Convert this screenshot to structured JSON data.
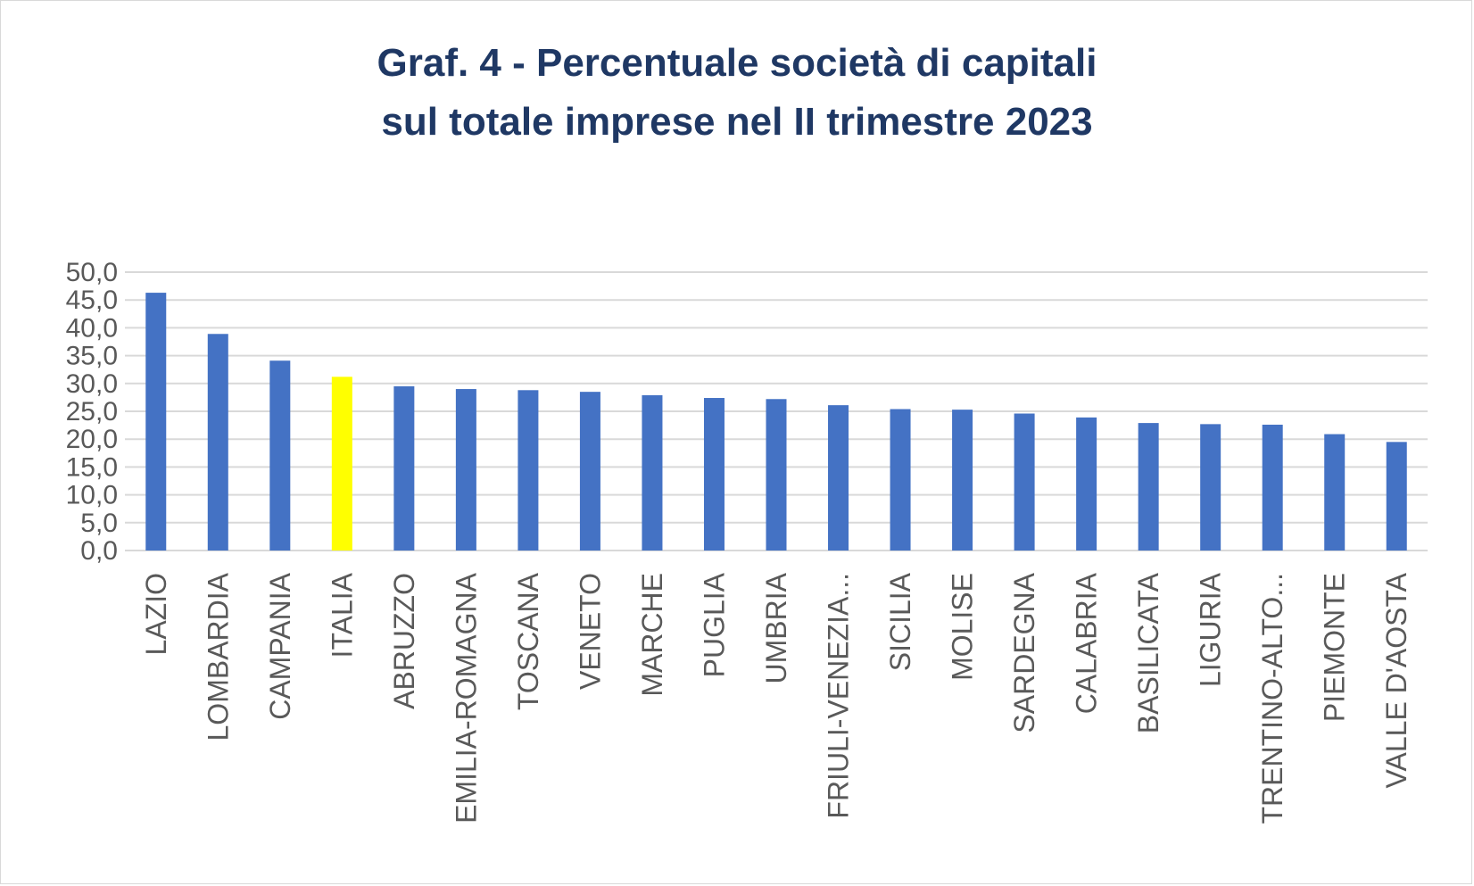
{
  "chart_data": {
    "type": "bar",
    "title_line1": "Graf. 4 - Percentuale società di capitali",
    "title_line2": "sul totale imprese nel II trimestre 2023",
    "categories": [
      "LAZIO",
      "LOMBARDIA",
      "CAMPANIA",
      "ITALIA",
      "ABRUZZO",
      "EMILIA-ROMAGNA",
      "TOSCANA",
      "VENETO",
      "MARCHE",
      "PUGLIA",
      "UMBRIA",
      "FRIULI-VENEZIA...",
      "SICILIA",
      "MOLISE",
      "SARDEGNA",
      "CALABRIA",
      "BASILICATA",
      "LIGURIA",
      "TRENTINO-ALTO...",
      "PIEMONTE",
      "VALLE D'AOSTA"
    ],
    "values": [
      46.3,
      38.9,
      34.1,
      31.2,
      29.5,
      29.0,
      28.8,
      28.5,
      27.9,
      27.4,
      27.2,
      26.1,
      25.4,
      25.3,
      24.6,
      23.9,
      22.9,
      22.7,
      22.6,
      20.9,
      19.5
    ],
    "highlight_category": "ITALIA",
    "y_ticks": [
      "0,0",
      "5,0",
      "10,0",
      "15,0",
      "20,0",
      "25,0",
      "30,0",
      "35,0",
      "40,0",
      "45,0",
      "50,0"
    ],
    "ylim": [
      0,
      50
    ],
    "grid": true,
    "colors": {
      "bar": "#4472c4",
      "highlight": "#ffff00",
      "title": "#1f3864",
      "axis_text": "#595959",
      "grid": "#d9d9d9"
    }
  }
}
